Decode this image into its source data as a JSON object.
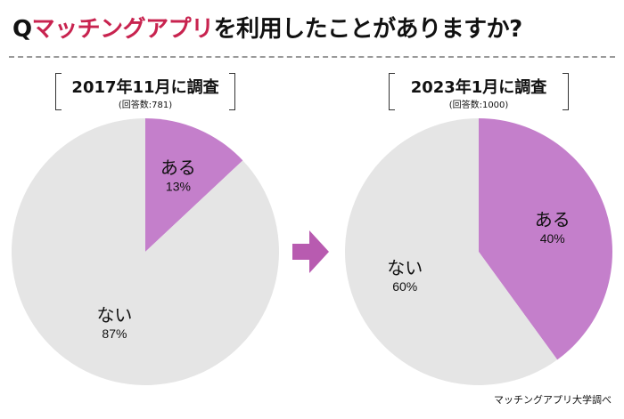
{
  "title": {
    "prefix": "Q",
    "accent": "マッチングアプリ",
    "rest": "を利用したことがありますか?"
  },
  "colors": {
    "accent_text": "#c8234f",
    "yes": "#c47fcb",
    "no": "#e5e5e5",
    "arrow": "#b85bb0"
  },
  "chart_data": [
    {
      "type": "pie",
      "title": "2017年11月に調査",
      "subtitle": "(回答数:781)",
      "labels": [
        "ある",
        "ない"
      ],
      "values": [
        13,
        87
      ],
      "value_labels": [
        "13%",
        "87%"
      ],
      "start": "12 o'clock, clockwise"
    },
    {
      "type": "pie",
      "title": "2023年1月に調査",
      "subtitle": "(回答数:1000)",
      "labels": [
        "ある",
        "ない"
      ],
      "values": [
        40,
        60
      ],
      "value_labels": [
        "40%",
        "60%"
      ],
      "start": "12 o'clock, clockwise"
    }
  ],
  "arrow_icon": "right-arrow",
  "source": "マッチングアプリ大学調べ"
}
